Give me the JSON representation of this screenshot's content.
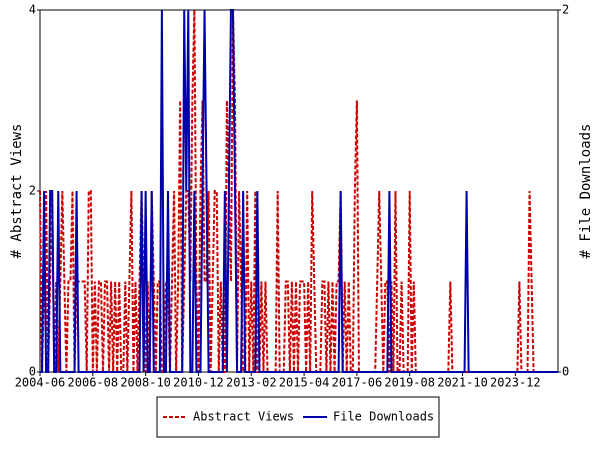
{
  "chart_data": {
    "type": "line",
    "categories": [
      "2004-06",
      null,
      null,
      null,
      null,
      null,
      null,
      null,
      null,
      null,
      null,
      null,
      null,
      null,
      null,
      null,
      null,
      null,
      null,
      null,
      null,
      null,
      null,
      null,
      null,
      null,
      "2006-08",
      null,
      null,
      null,
      null,
      null,
      null,
      null,
      null,
      null,
      null,
      null,
      null,
      null,
      null,
      null,
      null,
      null,
      null,
      null,
      null,
      null,
      null,
      null,
      null,
      null,
      "2008-10",
      null,
      null,
      null,
      null,
      null,
      null,
      null,
      null,
      null,
      null,
      null,
      null,
      null,
      null,
      null,
      null,
      null,
      null,
      null,
      null,
      null,
      null,
      null,
      null,
      null,
      "2010-12",
      null,
      null,
      null,
      null,
      null,
      null,
      null,
      null,
      null,
      null,
      null,
      null,
      null,
      null,
      null,
      null,
      null,
      null,
      null,
      null,
      null,
      null,
      null,
      null,
      null,
      "2013-02",
      null,
      null,
      null,
      null,
      null,
      null,
      null,
      null,
      null,
      null,
      null,
      null,
      null,
      null,
      null,
      null,
      null,
      null,
      null,
      null,
      null,
      null,
      null,
      null,
      null,
      "2015-04",
      null,
      null,
      null,
      null,
      null,
      null,
      null,
      null,
      null,
      null,
      null,
      null,
      null,
      null,
      null,
      null,
      null,
      null,
      null,
      null,
      null,
      null,
      null,
      null,
      null,
      "2017-06",
      null,
      null,
      null,
      null,
      null,
      null,
      null,
      null,
      null,
      null,
      null,
      null,
      null,
      null,
      null,
      null,
      null,
      null,
      null,
      null,
      null,
      null,
      null,
      null,
      null,
      "2019-08",
      null,
      null,
      null,
      null,
      null,
      null,
      null,
      null,
      null,
      null,
      null,
      null,
      null,
      null,
      null,
      null,
      null,
      null,
      null,
      null,
      null,
      null,
      null,
      null,
      null,
      "2021-10",
      null,
      null,
      null,
      null,
      null,
      null,
      null,
      null,
      null,
      null,
      null,
      null,
      null,
      null,
      null,
      null,
      null,
      null,
      null,
      null,
      null,
      null,
      null,
      null,
      null,
      "2023-12",
      null,
      null,
      null,
      null,
      null,
      null,
      null,
      null,
      null,
      null,
      null,
      null,
      null,
      null,
      null,
      null,
      null,
      null,
      null,
      null,
      null
    ],
    "y_label": "# Abstract Views",
    "y2_label": "# File Downloads",
    "ylim": [
      0,
      4
    ],
    "yticks": [
      0,
      2,
      4
    ],
    "y2lim": [
      0,
      2
    ],
    "y2ticks": [
      0,
      2
    ],
    "legend": "bottom",
    "series": [
      {
        "name": "Abstract Views",
        "color": "#cc0000",
        "dashed": true,
        "values": [
          2,
          0,
          1,
          2,
          0,
          1,
          2,
          0,
          1,
          0,
          1,
          2,
          1,
          0,
          1,
          1,
          2,
          0,
          1,
          1,
          1,
          1,
          1,
          0,
          2,
          2,
          0,
          1,
          0,
          1,
          1,
          0,
          1,
          1,
          0,
          1,
          0,
          1,
          0,
          1,
          0,
          0,
          1,
          0,
          1,
          2,
          0,
          1,
          0,
          1,
          2,
          1,
          0,
          1,
          0,
          2,
          1,
          0,
          1,
          1,
          0,
          0,
          1,
          1,
          0,
          1,
          2,
          0,
          1,
          3,
          0,
          1,
          2,
          2,
          1,
          3,
          4,
          1,
          0,
          2,
          3,
          1,
          1,
          2,
          0,
          1,
          2,
          2,
          0,
          1,
          0,
          0,
          3,
          2,
          1,
          4,
          3,
          0,
          2,
          1,
          0,
          0,
          2,
          0,
          1,
          0,
          2,
          0,
          0,
          1,
          0,
          1,
          0,
          0,
          0,
          0,
          0,
          2,
          0,
          0,
          0,
          1,
          1,
          0,
          1,
          0,
          1,
          0,
          1,
          1,
          1,
          0,
          1,
          0,
          2,
          1,
          0,
          0,
          0,
          1,
          1,
          0,
          1,
          0,
          1,
          0,
          1,
          1,
          2,
          0,
          1,
          0,
          1,
          0,
          0,
          2,
          3,
          0,
          0,
          0,
          0,
          0,
          0,
          0,
          0,
          0,
          1,
          2,
          1,
          0,
          1,
          1,
          0,
          1,
          0,
          2,
          0,
          0,
          1,
          0,
          0,
          0,
          2,
          0,
          1,
          0,
          0,
          0,
          0,
          0,
          0,
          0,
          0,
          0,
          0,
          0,
          0,
          0,
          0,
          0,
          0,
          0,
          1,
          0,
          0,
          0,
          0,
          0,
          0,
          0,
          0,
          0,
          0,
          0,
          0,
          0,
          0,
          0,
          0,
          0,
          0,
          0,
          0,
          0,
          0,
          0,
          0,
          0,
          0,
          0,
          0,
          0,
          0,
          0,
          0,
          0,
          1,
          0,
          0,
          0,
          0,
          2,
          1,
          0,
          0,
          0,
          0,
          0,
          0,
          0,
          0,
          0,
          0,
          0,
          0,
          0
        ]
      },
      {
        "name": "File Downloads",
        "color": "#0000aa",
        "axis": "y2",
        "values": [
          0,
          0,
          1,
          0,
          0,
          1,
          1,
          0,
          0,
          1,
          0,
          0,
          0,
          0,
          0,
          0,
          0,
          0,
          1,
          0,
          0,
          0,
          0,
          0,
          0,
          0,
          0,
          0,
          0,
          0,
          0,
          0,
          0,
          0,
          0,
          0,
          0,
          0,
          0,
          0,
          0,
          0,
          0,
          0,
          0,
          0,
          0,
          0,
          0,
          0,
          1,
          0,
          1,
          0,
          0,
          1,
          0,
          0,
          0,
          0,
          2,
          0,
          0,
          1,
          0,
          0,
          0,
          0,
          0,
          0,
          0,
          2,
          1,
          2,
          0,
          0,
          1,
          0,
          0,
          0,
          1,
          2,
          1,
          0,
          0,
          0,
          0,
          0,
          0,
          0,
          0,
          1,
          0,
          1,
          2,
          2,
          1,
          0,
          0,
          0,
          1,
          0,
          0,
          0,
          0,
          0,
          0,
          1,
          0,
          0,
          0,
          0,
          0,
          0,
          0,
          0,
          0,
          0,
          0,
          0,
          0,
          0,
          0,
          0,
          0,
          0,
          0,
          0,
          0,
          0,
          0,
          0,
          0,
          0,
          0,
          0,
          0,
          0,
          0,
          0,
          0,
          0,
          0,
          0,
          0,
          0,
          0,
          0,
          1,
          0,
          0,
          0,
          0,
          0,
          0,
          0,
          0,
          0,
          0,
          0,
          0,
          0,
          0,
          0,
          0,
          0,
          0,
          0,
          0,
          0,
          0,
          0,
          1,
          0,
          0,
          0,
          0,
          0,
          0,
          0,
          0,
          0,
          0,
          0,
          0,
          0,
          0,
          0,
          0,
          0,
          0,
          0,
          0,
          0,
          0,
          0,
          0,
          0,
          0,
          0,
          0,
          0,
          0,
          0,
          0,
          0,
          0,
          0,
          0,
          0,
          1,
          0,
          0,
          0,
          0,
          0,
          0,
          0,
          0,
          0,
          0,
          0,
          0,
          0,
          0,
          0,
          0,
          0,
          0,
          0,
          0,
          0,
          0,
          0,
          0,
          0,
          0,
          0,
          0,
          0,
          0,
          0,
          0,
          0,
          0,
          0,
          0,
          0,
          0,
          0,
          0,
          0,
          0,
          0,
          0,
          0
        ]
      }
    ]
  }
}
